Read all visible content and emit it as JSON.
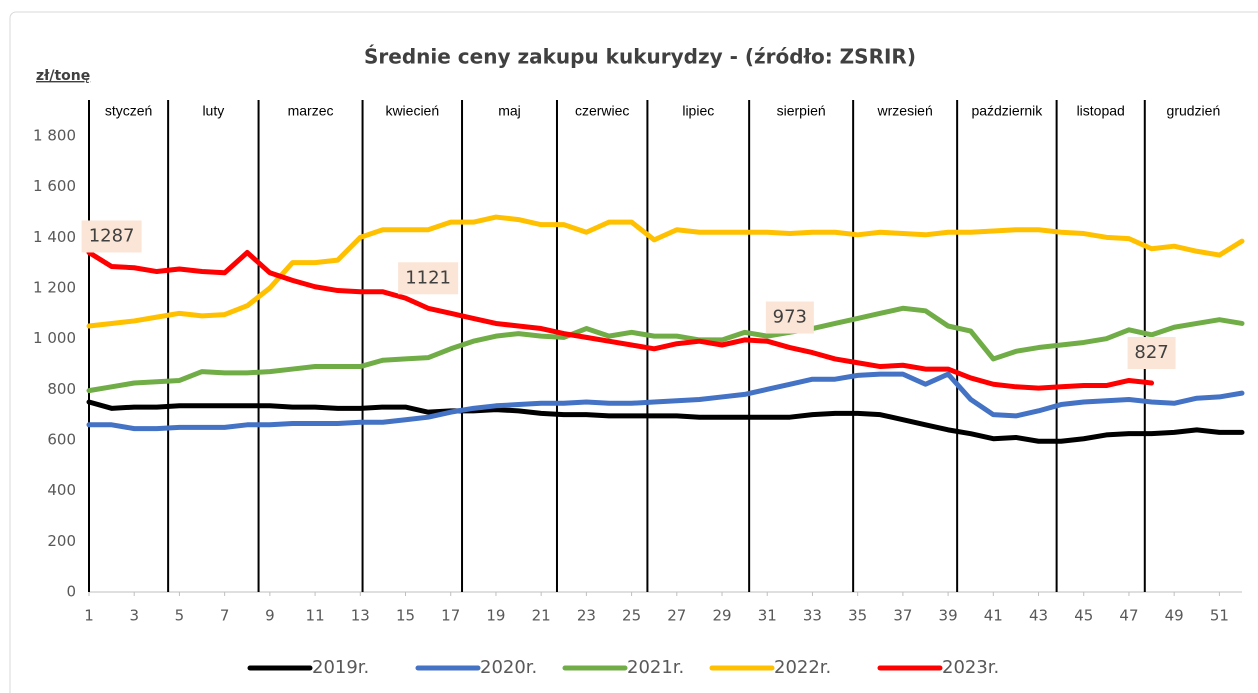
{
  "chart_data": {
    "type": "line",
    "title": "Średnie ceny zakupu kukurydzy - (źródło: ZSRIR)",
    "y_label": "zł/tonę",
    "x": [
      1,
      2,
      3,
      4,
      5,
      6,
      7,
      8,
      9,
      10,
      11,
      12,
      13,
      14,
      15,
      16,
      17,
      18,
      19,
      20,
      21,
      22,
      23,
      24,
      25,
      26,
      27,
      28,
      29,
      30,
      31,
      32,
      33,
      34,
      35,
      36,
      37,
      38,
      39,
      40,
      41,
      42,
      43,
      44,
      45,
      46,
      47,
      48,
      49,
      50,
      51,
      52
    ],
    "xlim": [
      1,
      52
    ],
    "xticks": [
      1,
      3,
      5,
      7,
      9,
      11,
      13,
      15,
      17,
      19,
      21,
      23,
      25,
      27,
      29,
      31,
      33,
      35,
      37,
      39,
      41,
      43,
      45,
      47,
      49,
      51
    ],
    "ylim": [
      0,
      1800
    ],
    "yticks": [
      0,
      200,
      400,
      600,
      800,
      {
        "value": 1000,
        "label": "1 000"
      },
      {
        "value": 1200,
        "label": "1 200"
      },
      {
        "value": 1400,
        "label": "1 400"
      },
      {
        "value": 1600,
        "label": "1 600"
      },
      {
        "value": 1800,
        "label": "1 800"
      }
    ],
    "grid": false,
    "months": [
      "styczeń",
      "luty",
      "marzec",
      "kwiecień",
      "maj",
      "czerwiec",
      "lipiec",
      "sierpień",
      "wrzesień",
      "październik",
      "listopad",
      "grudzień"
    ],
    "month_boundaries": [
      1,
      4.5,
      8.5,
      13.1,
      17.5,
      21.7,
      25.7,
      30.2,
      34.8,
      39.4,
      43.8,
      47.7
    ],
    "legend": "bottom",
    "series": [
      {
        "name": "2019r.",
        "color": "#000000",
        "values": [
          750,
          725,
          730,
          730,
          735,
          735,
          735,
          735,
          735,
          730,
          730,
          725,
          725,
          730,
          730,
          710,
          715,
          715,
          720,
          715,
          705,
          700,
          700,
          695,
          695,
          695,
          695,
          690,
          690,
          690,
          690,
          690,
          700,
          705,
          705,
          700,
          680,
          660,
          640,
          625,
          605,
          610,
          595,
          595,
          605,
          620,
          625,
          625,
          630,
          640,
          630,
          630
        ]
      },
      {
        "name": "2020r.",
        "color": "#4472c4",
        "values": [
          660,
          660,
          645,
          645,
          650,
          650,
          650,
          660,
          660,
          665,
          665,
          665,
          670,
          670,
          680,
          690,
          710,
          725,
          735,
          740,
          745,
          745,
          750,
          745,
          745,
          750,
          755,
          760,
          770,
          780,
          800,
          820,
          840,
          840,
          855,
          860,
          860,
          820,
          860,
          760,
          700,
          695,
          715,
          740,
          750,
          755,
          760,
          750,
          745,
          765,
          770,
          785
        ]
      },
      {
        "name": "2021r.",
        "color": "#70ad47",
        "values": [
          795,
          810,
          825,
          830,
          835,
          870,
          865,
          865,
          870,
          880,
          890,
          890,
          890,
          915,
          920,
          925,
          960,
          990,
          1010,
          1020,
          1010,
          1005,
          1040,
          1010,
          1025,
          1010,
          1010,
          995,
          995,
          1025,
          1010,
          1025,
          1040,
          1060,
          1080,
          1100,
          1120,
          1110,
          1050,
          1030,
          920,
          950,
          965,
          975,
          985,
          1000,
          1035,
          1015,
          1045,
          1060,
          1075,
          1060
        ]
      },
      {
        "name": "2022r.",
        "color": "#ffc000",
        "values": [
          1050,
          1060,
          1070,
          1085,
          1100,
          1090,
          1095,
          1130,
          1200,
          1300,
          1300,
          1310,
          1400,
          1430,
          1430,
          1430,
          1460,
          1460,
          1480,
          1470,
          1450,
          1450,
          1420,
          1460,
          1460,
          1390,
          1430,
          1420,
          1420,
          1420,
          1420,
          1415,
          1420,
          1420,
          1410,
          1420,
          1415,
          1410,
          1420,
          1420,
          1425,
          1430,
          1430,
          1420,
          1415,
          1400,
          1395,
          1355,
          1365,
          1345,
          1330,
          1385
        ]
      },
      {
        "name": "2023r.",
        "color": "#ff0000",
        "values": [
          1340,
          1285,
          1280,
          1265,
          1275,
          1265,
          1260,
          1340,
          1260,
          1230,
          1205,
          1190,
          1185,
          1185,
          1160,
          1120,
          1100,
          1080,
          1060,
          1050,
          1040,
          1020,
          1005,
          990,
          975,
          960,
          980,
          990,
          975,
          995,
          990,
          965,
          945,
          920,
          905,
          890,
          895,
          880,
          880,
          845,
          820,
          810,
          805,
          810,
          815,
          815,
          835,
          825,
          null,
          null,
          null,
          null
        ]
      }
    ],
    "annotations": [
      {
        "text": "1287",
        "x": 2
      },
      {
        "text": "1121",
        "x": 16
      },
      {
        "text": "973",
        "x": 32
      },
      {
        "text": "827",
        "x": 48
      }
    ]
  }
}
